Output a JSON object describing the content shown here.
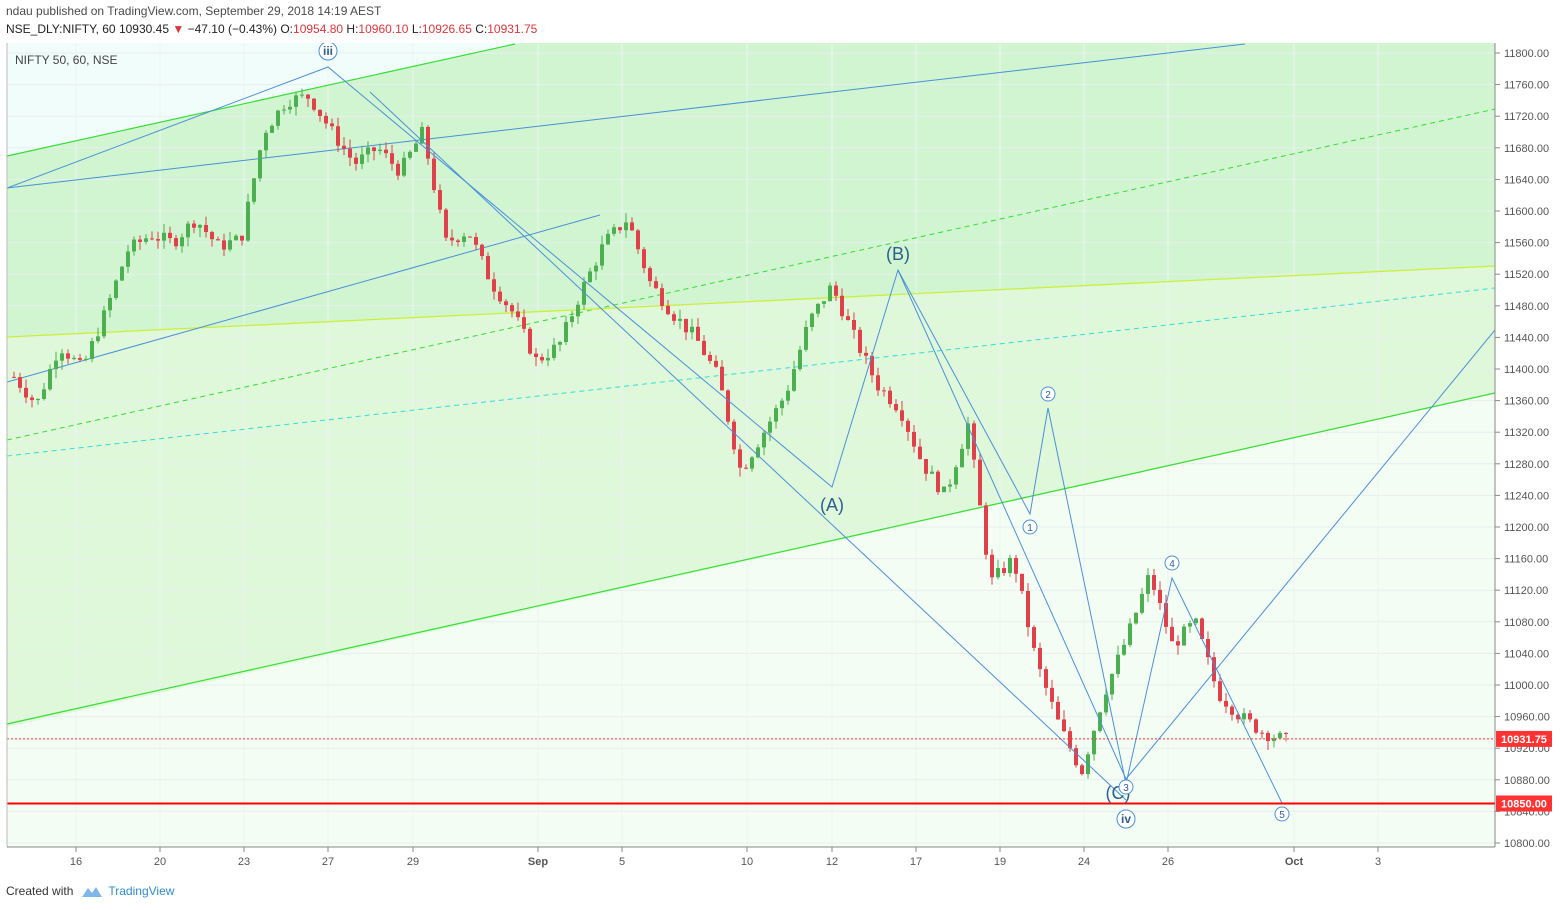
{
  "header": {
    "publisher": "ndau",
    "published_text": "published on TradingView.com, September 29, 2018 14:19 AEST",
    "symbol": "NSE_DLY:NIFTY, 60",
    "last": "10930.45",
    "change": "−47.10 (−0.43%)",
    "o_label": "O:",
    "o_value": "10954.80",
    "h_label": "H:",
    "h_value": "10960.10",
    "l_label": "L:",
    "l_value": "10926.65",
    "c_label": "C:",
    "c_value": "10931.75"
  },
  "legend_title": "NIFTY 50, 60, NSE",
  "footer": {
    "created_with": "Created with",
    "brand": "TradingView"
  },
  "colors": {
    "up": "#4caf50",
    "down": "#e0404a",
    "wave": "#4a90d9",
    "channel_green": "#33dd33",
    "channel_yellow": "#ccee33",
    "channel_cyan": "#33dddd",
    "support": "#ff0000",
    "price_tag": "#ff3333"
  },
  "chart_data": {
    "type": "candlestick",
    "title": "NIFTY 50, 60, NSE",
    "ylim": [
      10800,
      11820
    ],
    "y_ticks": [
      "11800.00",
      "11760.00",
      "11720.00",
      "11680.00",
      "11640.00",
      "11600.00",
      "11560.00",
      "11520.00",
      "11480.00",
      "11440.00",
      "11400.00",
      "11360.00",
      "11320.00",
      "11280.00",
      "11240.00",
      "11200.00",
      "11160.00",
      "11120.00",
      "11080.00",
      "11040.00",
      "11000.00",
      "10960.00",
      "10920.00",
      "10880.00",
      "10840.00",
      "10800.00"
    ],
    "x_ticks": [
      "16",
      "20",
      "23",
      "27",
      "29",
      "Sep",
      "5",
      "10",
      "12",
      "17",
      "19",
      "24",
      "26",
      "Oct",
      "3"
    ],
    "x_tick_emphasis": [
      "Sep",
      "Oct"
    ],
    "last_price": 10931.75,
    "last_price_label": "10931.75",
    "support_level": 10850.0,
    "support_label": "10850.00",
    "wave_labels": [
      {
        "text": "iii",
        "circled": true,
        "price": 11795
      },
      {
        "text": "(A)",
        "circled": false,
        "price": 11238
      },
      {
        "text": "(B)",
        "circled": false,
        "price": 11540
      },
      {
        "text": "1",
        "circled": true,
        "price": 11197
      },
      {
        "text": "2",
        "circled": true,
        "price": 11350
      },
      {
        "text": "(C)",
        "circled": false,
        "price": 10857
      },
      {
        "text": "3",
        "circled": true,
        "price": 10863
      },
      {
        "text": "4",
        "circled": true,
        "price": 11155
      },
      {
        "text": "iv",
        "circled": true,
        "price": 10830
      },
      {
        "text": "5",
        "circled": true,
        "price": 10838
      }
    ],
    "approx_price_path": [
      11390,
      11355,
      11430,
      11400,
      11470,
      11550,
      11570,
      11560,
      11590,
      11555,
      11565,
      11700,
      11740,
      11745,
      11700,
      11660,
      11680,
      11650,
      11700,
      11560,
      11575,
      11510,
      11470,
      11410,
      11430,
      11500,
      11560,
      11590,
      11510,
      11470,
      11440,
      11390,
      11270,
      11320,
      11370,
      11460,
      11505,
      11440,
      11380,
      11350,
      11280,
      11240,
      11330,
      11130,
      11160,
      11030,
      10950,
      10890,
      10990,
      11060,
      11140,
      11050,
      11080,
      10990,
      10960,
      10940,
      10930
    ]
  }
}
